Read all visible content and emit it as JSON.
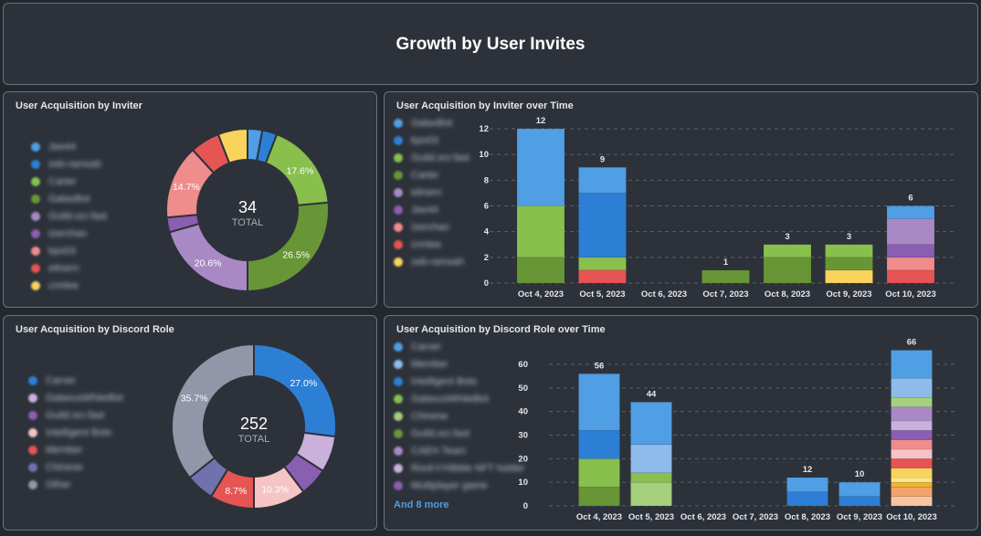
{
  "header": {
    "title": "Growth by User Invites"
  },
  "colors": {
    "light_blue": "#509ee3",
    "blue": "#2d7fd6",
    "light_green": "#88bf4d",
    "dark_green": "#689636",
    "light_purple": "#a989c5",
    "purple": "#8a5eb0",
    "pink": "#ef8c8c",
    "red": "#e75454",
    "yellow": "#f9d45c"
  },
  "inviter_donut": {
    "title": "User Acquisition by Inviter",
    "total": "34",
    "total_label": "TOTAL",
    "legend": [
      {
        "label": "Jee44",
        "color": "#509ee3"
      },
      {
        "label": "zeb-ramsah",
        "color": "#2d7fd6"
      },
      {
        "label": "Carter",
        "color": "#88bf4d"
      },
      {
        "label": "GalaxBot",
        "color": "#689636"
      },
      {
        "label": "Guild.ocr.fast",
        "color": "#a989c5"
      },
      {
        "label": "Izerchan",
        "color": "#8a5eb0"
      },
      {
        "label": "kpo03",
        "color": "#ef8c8c"
      },
      {
        "label": "eitnern",
        "color": "#e75454"
      },
      {
        "label": "cnntee",
        "color": "#f9d45c"
      }
    ],
    "chart_data": {
      "type": "pie",
      "values": [
        1,
        1,
        6,
        9,
        7,
        1,
        5,
        2,
        2
      ],
      "labels": [
        "",
        "",
        "17.6%",
        "26.5%",
        "20.6%",
        "",
        "14.7%",
        "",
        ""
      ]
    }
  },
  "inviter_time": {
    "title": "User Acquisition by Inviter over Time",
    "legend": [
      {
        "label": "GalaxBot",
        "color": "#509ee3"
      },
      {
        "label": "kpo03",
        "color": "#2d7fd6"
      },
      {
        "label": "Guild.ocr.fast",
        "color": "#88bf4d"
      },
      {
        "label": "Carter",
        "color": "#689636"
      },
      {
        "label": "eitnern",
        "color": "#a989c5"
      },
      {
        "label": "Jee44",
        "color": "#8a5eb0"
      },
      {
        "label": "Izerchan",
        "color": "#ef8c8c"
      },
      {
        "label": "cnntee",
        "color": "#e75454"
      },
      {
        "label": "zeb-ramsah",
        "color": "#f9d45c"
      }
    ],
    "chart_data": {
      "type": "bar",
      "stacked": true,
      "ylim": [
        0,
        12
      ],
      "yticks": [
        "0",
        "2",
        "4",
        "6",
        "8",
        "10",
        "12"
      ],
      "grid": true,
      "categories": [
        "Oct 4, 2023",
        "Oct 5, 2023",
        "Oct 6, 2023",
        "Oct 7, 2023",
        "Oct 8, 2023",
        "Oct 9, 2023",
        "Oct 10, 2023"
      ],
      "totals": [
        "12",
        "9",
        "",
        "1",
        "3",
        "3",
        "6"
      ],
      "stacks": [
        [
          {
            "v": 2,
            "c": "#689636"
          },
          {
            "v": 4,
            "c": "#88bf4d"
          },
          {
            "v": 6,
            "c": "#509ee3"
          }
        ],
        [
          {
            "v": 1,
            "c": "#e75454"
          },
          {
            "v": 1,
            "c": "#88bf4d"
          },
          {
            "v": 5,
            "c": "#2d7fd6"
          },
          {
            "v": 2,
            "c": "#509ee3"
          }
        ],
        [],
        [
          {
            "v": 1,
            "c": "#689636"
          }
        ],
        [
          {
            "v": 2,
            "c": "#689636"
          },
          {
            "v": 1,
            "c": "#88bf4d"
          }
        ],
        [
          {
            "v": 1,
            "c": "#f9d45c"
          },
          {
            "v": 1,
            "c": "#689636"
          },
          {
            "v": 1,
            "c": "#88bf4d"
          }
        ],
        [
          {
            "v": 1,
            "c": "#e75454"
          },
          {
            "v": 1,
            "c": "#ef8c8c"
          },
          {
            "v": 1,
            "c": "#8a5eb0"
          },
          {
            "v": 2,
            "c": "#a989c5"
          },
          {
            "v": 1,
            "c": "#509ee3"
          }
        ]
      ]
    }
  },
  "role_donut": {
    "title": "User Acquisition by Discord Role",
    "total": "252",
    "total_label": "TOTAL",
    "legend": [
      {
        "label": "Carver",
        "color": "#2d7fd6"
      },
      {
        "label": "GalaxusWhiteBot",
        "color": "#c9b1dc"
      },
      {
        "label": "Guild.ocr.fast",
        "color": "#8a5eb0"
      },
      {
        "label": "Intelligent Bots",
        "color": "#f5c4c4"
      },
      {
        "label": "Member",
        "color": "#e75454"
      },
      {
        "label": "Chinese",
        "color": "#7172ad"
      },
      {
        "label": "Other",
        "color": "#9197a8"
      }
    ],
    "chart_data": {
      "type": "pie",
      "values": [
        68,
        18,
        14,
        26,
        22,
        14,
        90
      ],
      "labels": [
        "27.0%",
        "",
        "",
        "10.3%",
        "8.7%",
        "",
        "35.7%"
      ]
    }
  },
  "role_time": {
    "title": "User Acquisition by Discord Role over Time",
    "legend": [
      {
        "label": "Carver",
        "color": "#509ee3"
      },
      {
        "label": "Member",
        "color": "#8ebbea"
      },
      {
        "label": "Intelligent Bots",
        "color": "#2d7fd6"
      },
      {
        "label": "GalaxusWhiteBot",
        "color": "#88bf4d"
      },
      {
        "label": "Chinese",
        "color": "#a7d07c"
      },
      {
        "label": "Guild.ocr.fast",
        "color": "#689636"
      },
      {
        "label": "CAEH Team",
        "color": "#a989c5"
      },
      {
        "label": "Rock'n'Hibble NFT holder",
        "color": "#c9b1dc"
      },
      {
        "label": "Multiplayer game",
        "color": "#8a5eb0"
      }
    ],
    "more": "And 8 more",
    "chart_data": {
      "type": "bar",
      "stacked": true,
      "ylim": [
        0,
        66
      ],
      "yticks": [
        "0",
        "10",
        "20",
        "30",
        "40",
        "50",
        "60"
      ],
      "grid": true,
      "categories": [
        "Oct 4, 2023",
        "Oct 5, 2023",
        "Oct 6, 2023",
        "Oct 7, 2023",
        "Oct 8, 2023",
        "Oct 9, 2023",
        "Oct 10, 2023"
      ],
      "totals": [
        "56",
        "44",
        "",
        "",
        "12",
        "10",
        "66"
      ],
      "stacks": [
        [
          {
            "v": 8,
            "c": "#689636"
          },
          {
            "v": 12,
            "c": "#88bf4d"
          },
          {
            "v": 12,
            "c": "#2d7fd6"
          },
          {
            "v": 24,
            "c": "#509ee3"
          }
        ],
        [
          {
            "v": 10,
            "c": "#a7d07c"
          },
          {
            "v": 4,
            "c": "#88bf4d"
          },
          {
            "v": 12,
            "c": "#8ebbea"
          },
          {
            "v": 18,
            "c": "#509ee3"
          }
        ],
        [],
        [],
        [
          {
            "v": 6,
            "c": "#2d7fd6"
          },
          {
            "v": 6,
            "c": "#509ee3"
          }
        ],
        [
          {
            "v": 4,
            "c": "#2d7fd6"
          },
          {
            "v": 6,
            "c": "#509ee3"
          }
        ],
        [
          {
            "v": 4,
            "c": "#f6c6a3"
          },
          {
            "v": 4,
            "c": "#f2a36c"
          },
          {
            "v": 2,
            "c": "#f0b428"
          },
          {
            "v": 2,
            "c": "#fbe38f"
          },
          {
            "v": 4,
            "c": "#f9d45c"
          },
          {
            "v": 4,
            "c": "#e75454"
          },
          {
            "v": 4,
            "c": "#f5c4c4"
          },
          {
            "v": 4,
            "c": "#ef8c8c"
          },
          {
            "v": 4,
            "c": "#8a5eb0"
          },
          {
            "v": 4,
            "c": "#c9b1dc"
          },
          {
            "v": 6,
            "c": "#a989c5"
          },
          {
            "v": 4,
            "c": "#a7d07c"
          },
          {
            "v": 8,
            "c": "#8ebbea"
          },
          {
            "v": 12,
            "c": "#509ee3"
          }
        ]
      ]
    }
  }
}
